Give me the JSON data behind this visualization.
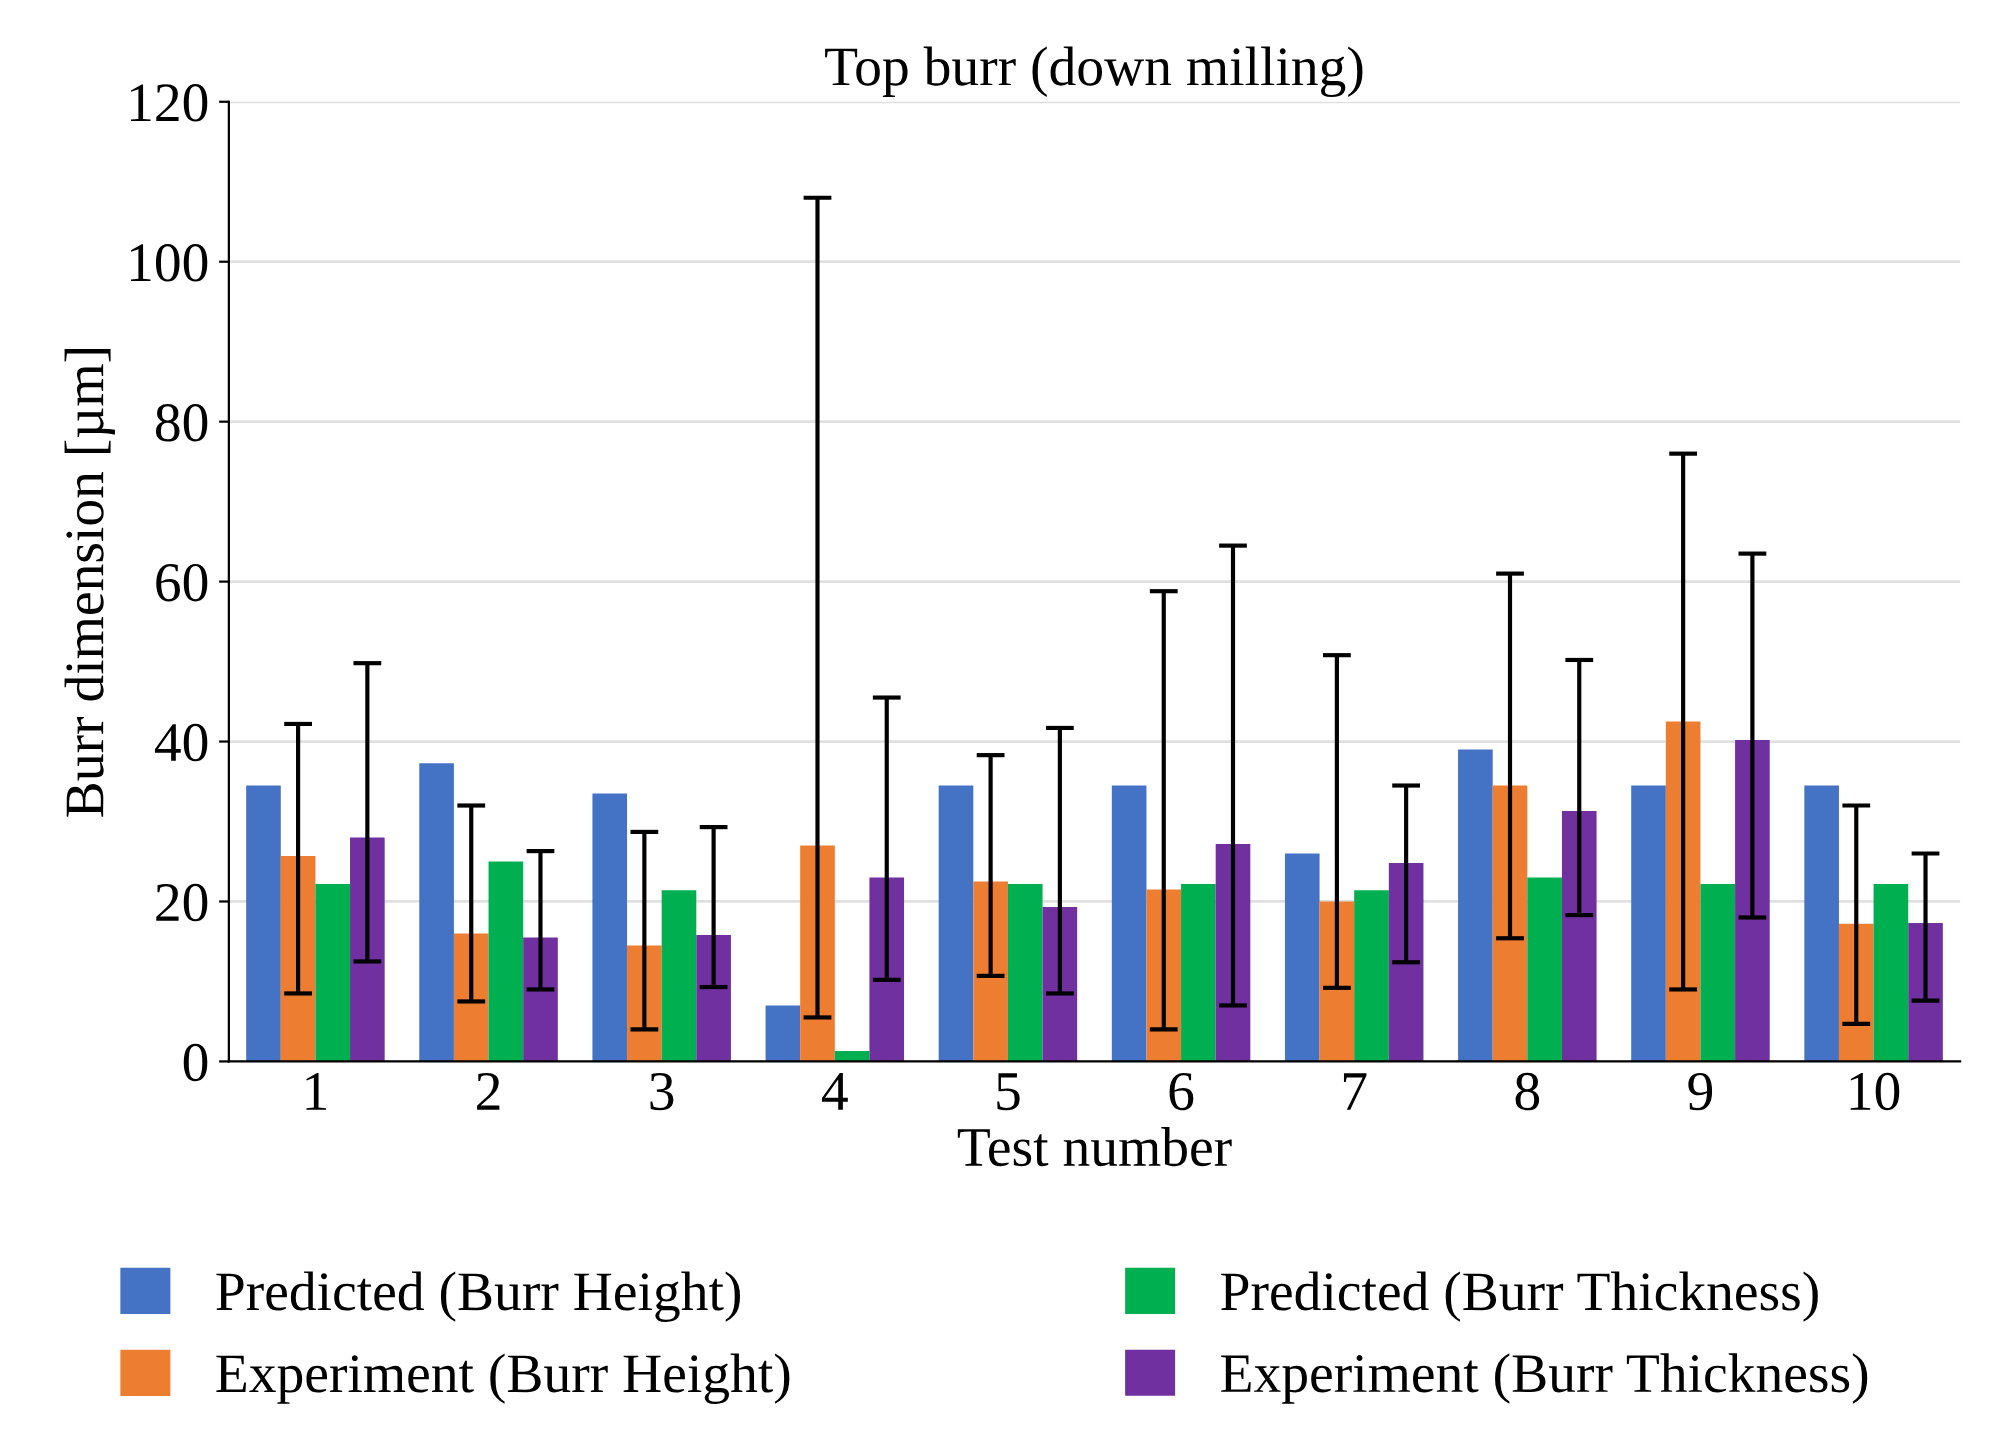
{
  "chart_data": {
    "type": "bar",
    "title": "Top burr (down milling)",
    "xlabel": "Test number",
    "ylabel": "Burr dimension [µm]",
    "categories": [
      "1",
      "2",
      "3",
      "4",
      "5",
      "6",
      "7",
      "8",
      "9",
      "10"
    ],
    "series": [
      {
        "name": "Predicted (Burr Height)",
        "color": "#4472c4",
        "values": [
          34.5,
          37.3,
          33.5,
          7,
          34.5,
          34.5,
          26,
          39,
          34.5,
          34.5
        ]
      },
      {
        "name": "Experiment (Burr Height)",
        "color": "#ed7d31",
        "values": [
          25.7,
          16,
          14.5,
          27,
          22.5,
          21.5,
          20,
          34.5,
          42.5,
          17.2
        ],
        "errors": [
          [
            8.5,
            42.2
          ],
          [
            7.5,
            32
          ],
          [
            4,
            28.7
          ],
          [
            5.5,
            108
          ],
          [
            10.7,
            38.3
          ],
          [
            4,
            58.8
          ],
          [
            9.2,
            50.8
          ],
          [
            15.4,
            61
          ],
          [
            9,
            76
          ],
          [
            4.7,
            32
          ]
        ]
      },
      {
        "name": "Predicted (Burr Thickness)",
        "color": "#00b050",
        "values": [
          22.2,
          25,
          21.4,
          1.3,
          22.2,
          22.2,
          21.4,
          23,
          22.2,
          22.2
        ]
      },
      {
        "name": "Experiment (Burr Thickness)",
        "color": "#7030a0",
        "values": [
          28,
          15.5,
          15.8,
          23,
          19.3,
          27.2,
          24.8,
          31.3,
          40.2,
          17.3
        ],
        "errors": [
          [
            12.5,
            49.8
          ],
          [
            9,
            26.3
          ],
          [
            9.3,
            29.3
          ],
          [
            10.2,
            45.5
          ],
          [
            8.5,
            41.7
          ],
          [
            7,
            64.5
          ],
          [
            12.4,
            34.5
          ],
          [
            18.3,
            50.2
          ],
          [
            18,
            63.5
          ],
          [
            7.6,
            26
          ]
        ]
      }
    ],
    "ylim": [
      0,
      120
    ],
    "yticks": [
      0,
      20,
      40,
      60,
      80,
      100,
      120
    ],
    "grid": "y",
    "legend": "bottom"
  }
}
